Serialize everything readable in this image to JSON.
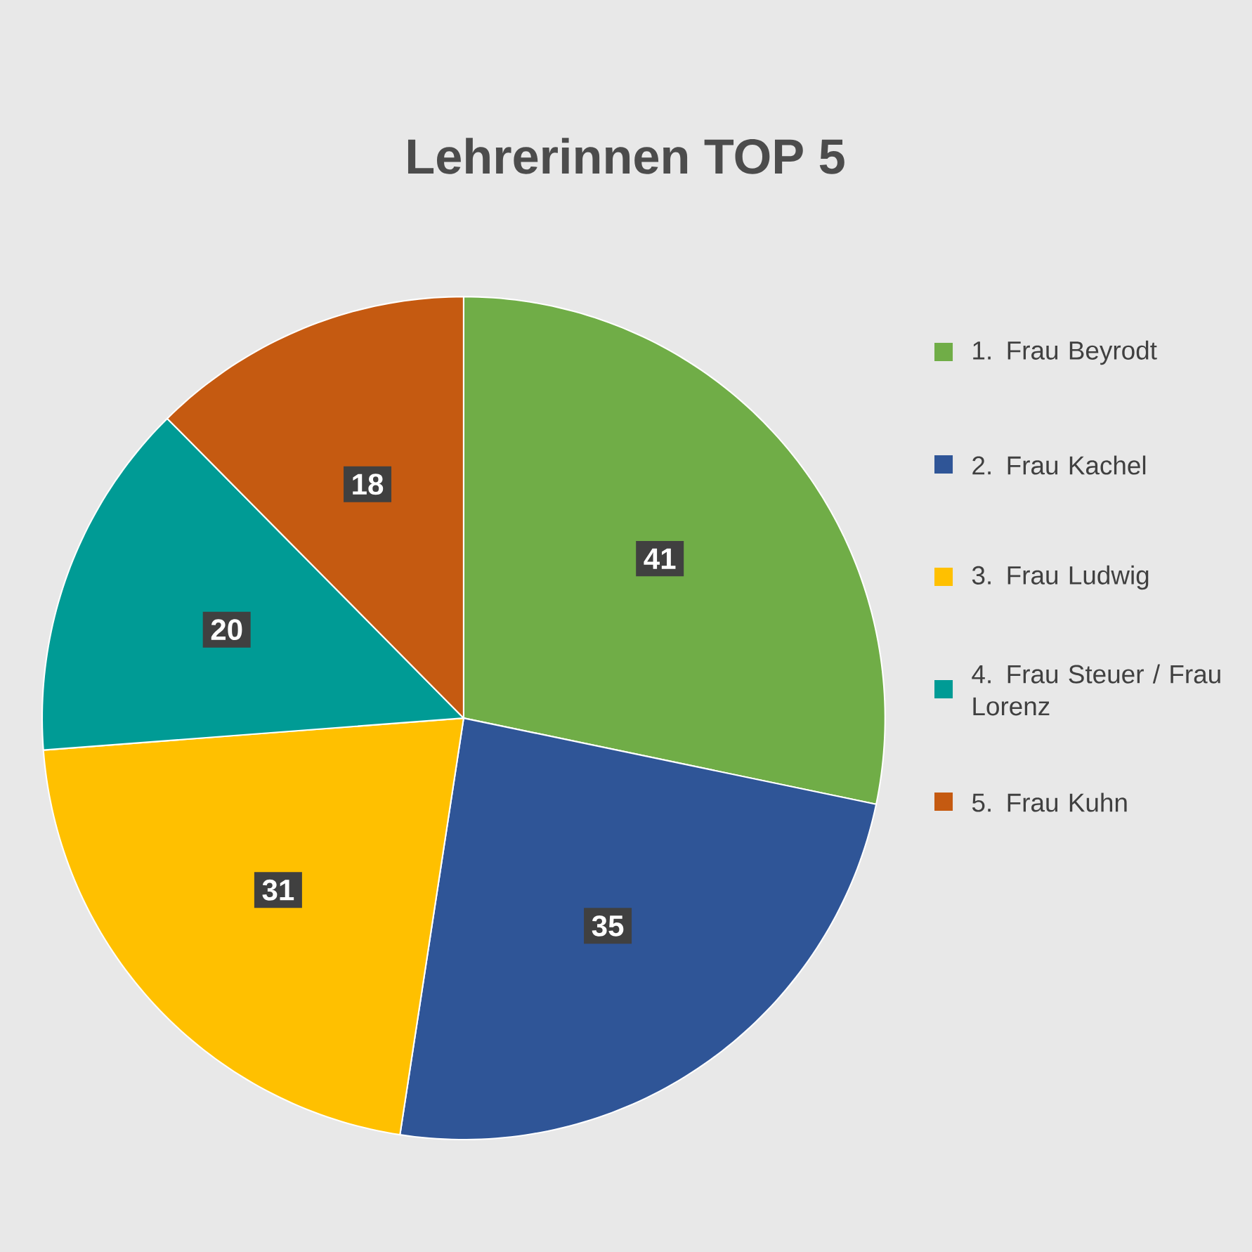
{
  "chart_data": {
    "type": "pie",
    "title": "Lehrerinnen TOP 5",
    "categories": [
      "1. Frau Beyrodt",
      "2. Frau Kachel",
      "3. Frau Ludwig",
      "4. Frau Steuer / Frau Lorenz",
      "5. Frau Kuhn"
    ],
    "values": [
      41,
      35,
      31,
      20,
      18
    ],
    "colors": [
      "#70ad47",
      "#2f5597",
      "#ffc000",
      "#009b95",
      "#c55a11"
    ],
    "data_labels": true,
    "legend": "right"
  }
}
